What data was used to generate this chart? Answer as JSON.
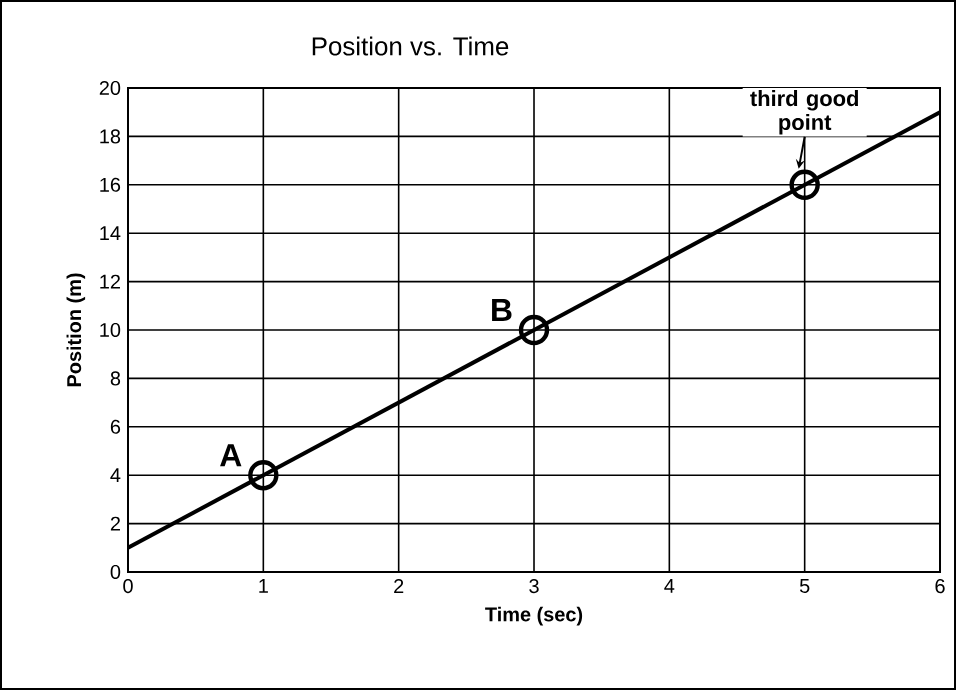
{
  "chart_data": {
    "type": "line",
    "title": "Position vs. Time",
    "xlabel": "Time (sec)",
    "ylabel": "Position (m)",
    "xlim": [
      0,
      6
    ],
    "ylim": [
      0,
      20
    ],
    "xticks": [
      0,
      1,
      2,
      3,
      4,
      5,
      6
    ],
    "yticks": [
      0,
      2,
      4,
      6,
      8,
      10,
      12,
      14,
      16,
      18,
      20
    ],
    "grid": true,
    "series": [
      {
        "color": "#000000",
        "marker": "none",
        "x": [
          0,
          6
        ],
        "values": [
          1,
          19
        ]
      },
      {
        "type": "scatter",
        "color": "#000000",
        "marker": "circle",
        "x": [
          1,
          3,
          5
        ],
        "values": [
          4,
          10,
          16
        ]
      }
    ],
    "annotations": [
      {
        "text": "A",
        "x": 1,
        "y": 4
      },
      {
        "text": "B",
        "x": 3,
        "y": 10
      },
      {
        "text": "third good point",
        "x": 5,
        "y": 16
      }
    ]
  }
}
